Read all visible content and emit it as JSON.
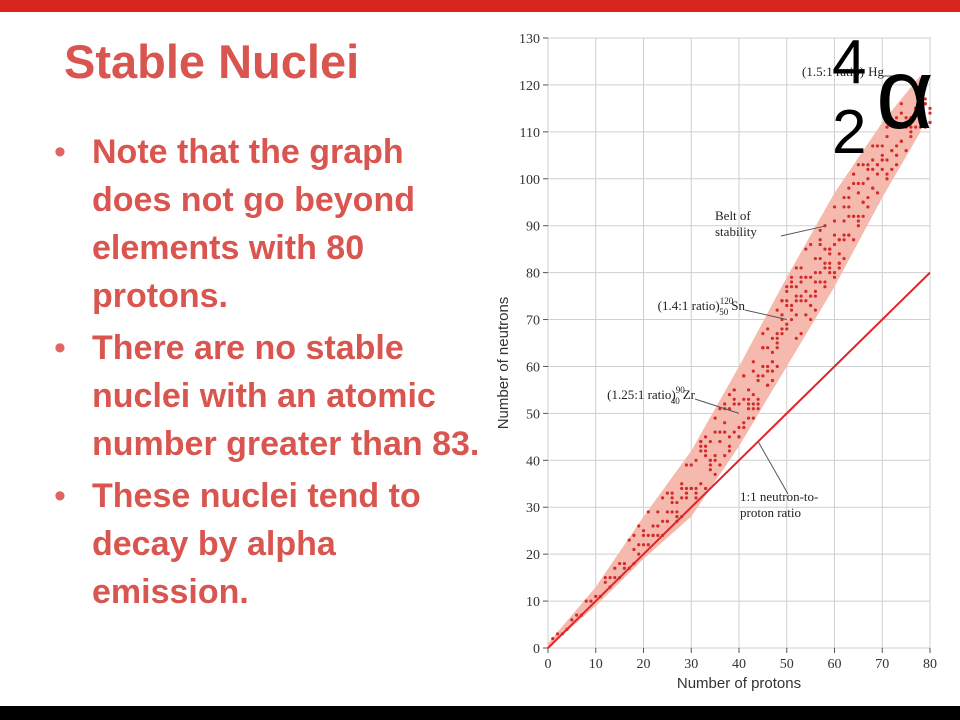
{
  "slide": {
    "title": "Stable Nuclei",
    "bullets": [
      "Note that the graph does not go beyond elements with 80 protons.",
      "There are no stable nuclei with an atomic number greater than 83.",
      "These nuclei tend to decay by alpha emission."
    ],
    "bullet_char": "•"
  },
  "alpha_symbol": {
    "mass_number": "4",
    "atomic_number": "2",
    "letter": "α"
  },
  "colors": {
    "accent": "#d9251d",
    "title": "#d9554f",
    "band": "#f6b9ad",
    "points": "#d42a2a",
    "line": "#e0242b"
  },
  "chart_data": {
    "type": "scatter",
    "xlabel": "Number of protons",
    "ylabel": "Number of neutrons",
    "xlim": [
      0,
      80
    ],
    "ylim": [
      0,
      130
    ],
    "xticks": [
      0,
      10,
      20,
      30,
      40,
      50,
      60,
      70,
      80
    ],
    "yticks": [
      0,
      10,
      20,
      30,
      40,
      50,
      60,
      70,
      80,
      90,
      100,
      110,
      120,
      130
    ],
    "grid": true,
    "band": {
      "name": "Belt of stability",
      "lower": [
        [
          0,
          0
        ],
        [
          10,
          9
        ],
        [
          20,
          19
        ],
        [
          30,
          28
        ],
        [
          40,
          43
        ],
        [
          50,
          60
        ],
        [
          60,
          77
        ],
        [
          70,
          96
        ],
        [
          78,
          110
        ]
      ],
      "upper": [
        [
          0,
          1
        ],
        [
          10,
          13
        ],
        [
          20,
          28
        ],
        [
          30,
          42
        ],
        [
          40,
          60
        ],
        [
          50,
          79
        ],
        [
          60,
          97
        ],
        [
          70,
          112
        ],
        [
          78,
          122
        ]
      ]
    },
    "reference_line": {
      "name": "1:1 neutron-to-proton ratio",
      "x": [
        0,
        80
      ],
      "y": [
        0,
        80
      ]
    },
    "annotations": [
      {
        "prefix": "(1.5:1 ratio)",
        "mass": "",
        "atomic": "",
        "symbol": "Hg",
        "x": 80,
        "y": 120
      },
      {
        "prefix": "(1.4:1 ratio)",
        "mass": "120",
        "atomic": "50",
        "symbol": "Sn",
        "x": 50,
        "y": 70
      },
      {
        "prefix": "(1.25:1 ratio)",
        "mass": "90",
        "atomic": "40",
        "symbol": "Zr",
        "x": 40,
        "y": 50
      },
      {
        "label_lines": [
          "Belt of",
          "stability"
        ],
        "x": 60,
        "y": 90
      },
      {
        "label_lines": [
          "1:1 neutron-to-",
          "proton ratio"
        ],
        "x": 44,
        "y": 44
      }
    ],
    "point_rule": "stable nuclides shown as dots filling the belt for Z = 1 to 80"
  }
}
